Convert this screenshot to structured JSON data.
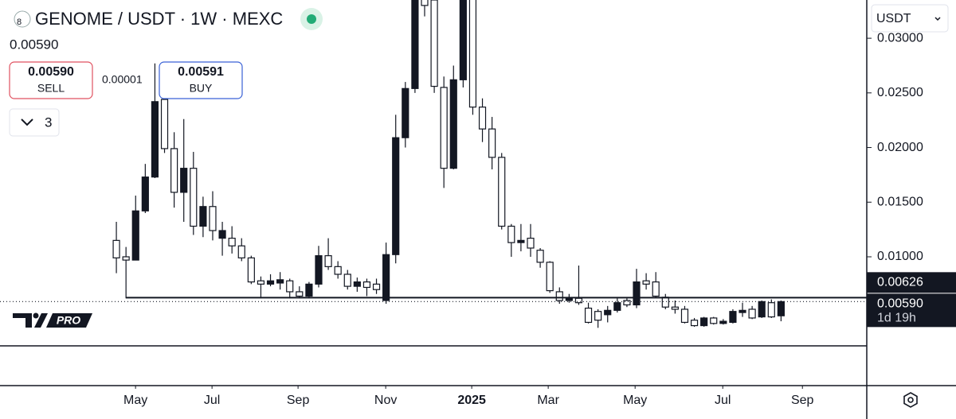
{
  "ui": {
    "title": "GENOME / USDT · 1W · MEXC",
    "last_price": "0.00590",
    "sell_price": "0.00590",
    "sell_label": "SELL",
    "spread": "0.00001",
    "buy_price": "0.00591",
    "buy_label": "BUY",
    "indicator_count": "3",
    "currency": "USDT",
    "logo_text": "PRO"
  },
  "chart_data": {
    "type": "candlestick",
    "up_color": "#131722",
    "down_color": "#ffffff",
    "open": [
      0.0115,
      0.01,
      0.0097,
      0.0142,
      0.0173,
      0.0244,
      0.0199,
      0.0159,
      0.0181,
      0.0128,
      0.0146,
      0.0117,
      0.0117,
      0.011,
      0.0099,
      0.0078,
      0.0075,
      0.0076,
      0.0078,
      0.0068,
      0.0064,
      0.0075,
      0.0101,
      0.0091,
      0.0084,
      0.0073,
      0.0077,
      0.0075,
      0.006,
      0.0102,
      0.0209,
      0.0254,
      0.0345,
      0.0335,
      0.0255,
      0.0181,
      0.0262,
      0.034,
      0.0237,
      0.0217,
      0.0191,
      0.0128,
      0.0113,
      0.0117,
      0.0106,
      0.0095,
      0.0068,
      0.006,
      0.0062,
      0.0053,
      0.005,
      0.0047,
      0.0051,
      0.006,
      0.0056,
      0.0078,
      0.0077,
      0.0063,
      0.0054,
      0.0052,
      0.0042,
      0.0037,
      0.0044,
      0.0039,
      0.004,
      0.0049,
      0.0052,
      0.0045,
      0.0058,
      0.0046
    ],
    "high": [
      0.0132,
      0.0109,
      0.0156,
      0.0185,
      0.0277,
      0.0253,
      0.0214,
      0.0226,
      0.0196,
      0.0155,
      0.016,
      0.0132,
      0.0128,
      0.0117,
      0.0101,
      0.0082,
      0.0084,
      0.0086,
      0.008,
      0.0073,
      0.0077,
      0.011,
      0.0117,
      0.0096,
      0.0088,
      0.0081,
      0.008,
      0.008,
      0.0113,
      0.023,
      0.026,
      0.035,
      0.036,
      0.034,
      0.0265,
      0.0275,
      0.036,
      0.036,
      0.0245,
      0.0228,
      0.0195,
      0.013,
      0.013,
      0.013,
      0.0108,
      0.0096,
      0.0072,
      0.0066,
      0.0092,
      0.0058,
      0.0052,
      0.0055,
      0.0062,
      0.0062,
      0.0089,
      0.0085,
      0.0086,
      0.0066,
      0.006,
      0.0055,
      0.0044,
      0.0045,
      0.0045,
      0.0043,
      0.0052,
      0.0058,
      0.0055,
      0.006,
      0.0061,
      0.006
    ],
    "low": [
      0.0085,
      0.0062,
      0.0097,
      0.014,
      0.0172,
      0.0195,
      0.0145,
      0.0132,
      0.012,
      0.0118,
      0.0115,
      0.0101,
      0.0103,
      0.0096,
      0.0075,
      0.0062,
      0.0073,
      0.007,
      0.0062,
      0.0062,
      0.0062,
      0.0072,
      0.0088,
      0.008,
      0.007,
      0.0068,
      0.0064,
      0.0066,
      0.0057,
      0.0094,
      0.02,
      0.025,
      0.032,
      0.025,
      0.0163,
      0.018,
      0.0255,
      0.023,
      0.0205,
      0.018,
      0.0125,
      0.01,
      0.0105,
      0.01,
      0.009,
      0.0067,
      0.0057,
      0.0058,
      0.0056,
      0.0039,
      0.0035,
      0.004,
      0.0049,
      0.0054,
      0.0053,
      0.007,
      0.0063,
      0.0052,
      0.0048,
      0.0039,
      0.0036,
      0.0036,
      0.0038,
      0.0038,
      0.0039,
      0.0045,
      0.0043,
      0.0044,
      0.0044,
      0.0041
    ],
    "close": [
      0.0099,
      0.0097,
      0.0142,
      0.0173,
      0.0242,
      0.0199,
      0.0159,
      0.0181,
      0.0128,
      0.0146,
      0.0124,
      0.0124,
      0.011,
      0.0099,
      0.0077,
      0.0075,
      0.0078,
      0.0079,
      0.0068,
      0.0064,
      0.0075,
      0.0101,
      0.0091,
      0.0084,
      0.0073,
      0.0077,
      0.0072,
      0.007,
      0.0102,
      0.0209,
      0.0254,
      0.034,
      0.033,
      0.0256,
      0.0181,
      0.0262,
      0.034,
      0.0237,
      0.0217,
      0.0191,
      0.0128,
      0.0113,
      0.0115,
      0.0108,
      0.0095,
      0.0069,
      0.006,
      0.0062,
      0.0058,
      0.004,
      0.0042,
      0.0051,
      0.0058,
      0.0056,
      0.0077,
      0.0075,
      0.0064,
      0.0054,
      0.0052,
      0.004,
      0.0037,
      0.0044,
      0.0039,
      0.0041,
      0.005,
      0.0051,
      0.0044,
      0.0059,
      0.0045,
      0.0059
    ],
    "xlim": [
      -12.08,
      77.9
    ],
    "xticks": [
      {
        "value": 1.99,
        "label": "May"
      },
      {
        "value": 9.93,
        "label": "Jul"
      },
      {
        "value": 18.86,
        "label": "Sep"
      },
      {
        "value": 27.96,
        "label": "Nov"
      },
      {
        "value": 36.89,
        "label": "2025"
      },
      {
        "value": 44.83,
        "label": "Mar"
      },
      {
        "value": 53.85,
        "label": "May"
      },
      {
        "value": 62.95,
        "label": "Jul"
      },
      {
        "value": 71.22,
        "label": "Sep"
      }
    ],
    "ylim": [
      0.00185,
      0.0335
    ],
    "yticks": [
      {
        "value": 0.01,
        "label": "0.01000"
      },
      {
        "value": 0.015,
        "label": "0.01500"
      },
      {
        "value": 0.02,
        "label": "0.02000"
      },
      {
        "value": 0.025,
        "label": "0.02500"
      },
      {
        "value": 0.03,
        "label": "0.03000"
      }
    ],
    "price_lines": [
      {
        "value": 0.00626,
        "label": "0.00626",
        "style": "solid"
      },
      {
        "value": 0.0059,
        "label": "0.00590",
        "note": "1d 19h",
        "style": "dotted"
      }
    ]
  }
}
